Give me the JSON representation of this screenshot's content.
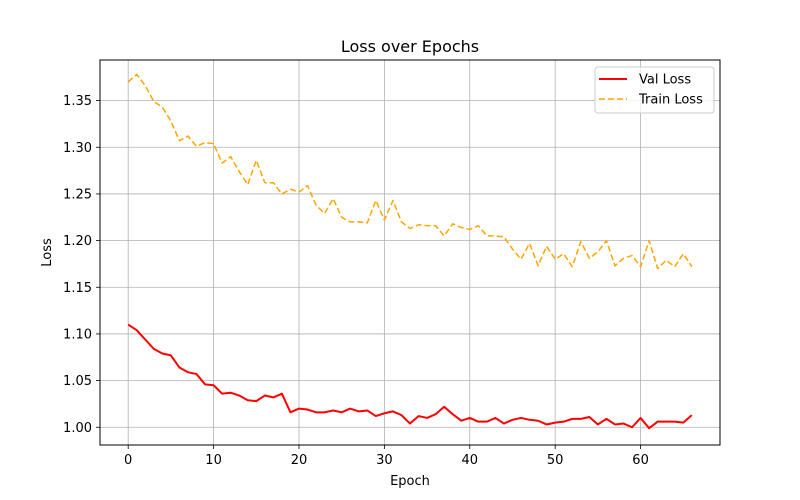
{
  "chart_data": {
    "type": "line",
    "title": "Loss over Epochs",
    "xlabel": "Epoch",
    "ylabel": "Loss",
    "xlim": [
      -3.3,
      69.3
    ],
    "ylim": [
      0.981,
      1.3935
    ],
    "xticks": [
      0,
      10,
      20,
      30,
      40,
      50,
      60
    ],
    "yticks": [
      1.0,
      1.05,
      1.1,
      1.15,
      1.2,
      1.25,
      1.3,
      1.35
    ],
    "ytick_labels": [
      "1.00",
      "1.05",
      "1.10",
      "1.15",
      "1.20",
      "1.25",
      "1.30",
      "1.35"
    ],
    "grid": true,
    "legend_position": "top-right",
    "series": [
      {
        "name": "Val Loss",
        "color": "#ff0000",
        "style": "solid",
        "x": [
          0,
          1,
          2,
          3,
          4,
          5,
          6,
          7,
          8,
          9,
          10,
          11,
          12,
          13,
          14,
          15,
          16,
          17,
          18,
          19,
          20,
          21,
          22,
          23,
          24,
          25,
          26,
          27,
          28,
          29,
          30,
          31,
          32,
          33,
          34,
          35,
          36,
          37,
          38,
          39,
          40,
          41,
          42,
          43,
          44,
          45,
          46,
          47,
          48,
          49,
          50,
          51,
          52,
          53,
          54,
          55,
          56,
          57,
          58,
          59,
          60,
          61,
          62,
          63,
          64,
          65,
          66
        ],
        "values": [
          1.11,
          1.104,
          1.094,
          1.084,
          1.079,
          1.077,
          1.064,
          1.059,
          1.057,
          1.046,
          1.045,
          1.036,
          1.037,
          1.034,
          1.029,
          1.028,
          1.034,
          1.032,
          1.036,
          1.016,
          1.02,
          1.019,
          1.016,
          1.016,
          1.018,
          1.016,
          1.02,
          1.017,
          1.018,
          1.012,
          1.015,
          1.017,
          1.013,
          1.004,
          1.012,
          1.01,
          1.014,
          1.022,
          1.014,
          1.007,
          1.01,
          1.006,
          1.006,
          1.01,
          1.004,
          1.008,
          1.01,
          1.008,
          1.007,
          1.003,
          1.005,
          1.006,
          1.009,
          1.009,
          1.011,
          1.003,
          1.009,
          1.003,
          1.004,
          1.0,
          1.01,
          0.999,
          1.006,
          1.006,
          1.006,
          1.005,
          1.013
        ]
      },
      {
        "name": "Train Loss",
        "color": "#ffa500",
        "style": "dashed",
        "x": [
          0,
          1,
          2,
          3,
          4,
          5,
          6,
          7,
          8,
          9,
          10,
          11,
          12,
          13,
          14,
          15,
          16,
          17,
          18,
          19,
          20,
          21,
          22,
          23,
          24,
          25,
          26,
          27,
          28,
          29,
          30,
          31,
          32,
          33,
          34,
          35,
          36,
          37,
          38,
          39,
          40,
          41,
          42,
          43,
          44,
          45,
          46,
          47,
          48,
          49,
          50,
          51,
          52,
          53,
          54,
          55,
          56,
          57,
          58,
          59,
          60,
          61,
          62,
          63,
          64,
          65,
          66
        ],
        "values": [
          1.37,
          1.378,
          1.366,
          1.349,
          1.343,
          1.328,
          1.307,
          1.312,
          1.301,
          1.305,
          1.304,
          1.283,
          1.29,
          1.274,
          1.26,
          1.286,
          1.262,
          1.262,
          1.25,
          1.255,
          1.252,
          1.259,
          1.238,
          1.229,
          1.245,
          1.225,
          1.22,
          1.22,
          1.219,
          1.243,
          1.222,
          1.243,
          1.22,
          1.213,
          1.217,
          1.216,
          1.216,
          1.205,
          1.218,
          1.214,
          1.212,
          1.216,
          1.205,
          1.205,
          1.204,
          1.191,
          1.18,
          1.197,
          1.173,
          1.194,
          1.18,
          1.186,
          1.172,
          1.199,
          1.181,
          1.188,
          1.2,
          1.173,
          1.181,
          1.184,
          1.172,
          1.2,
          1.17,
          1.179,
          1.172,
          1.186,
          1.172
        ]
      }
    ]
  }
}
